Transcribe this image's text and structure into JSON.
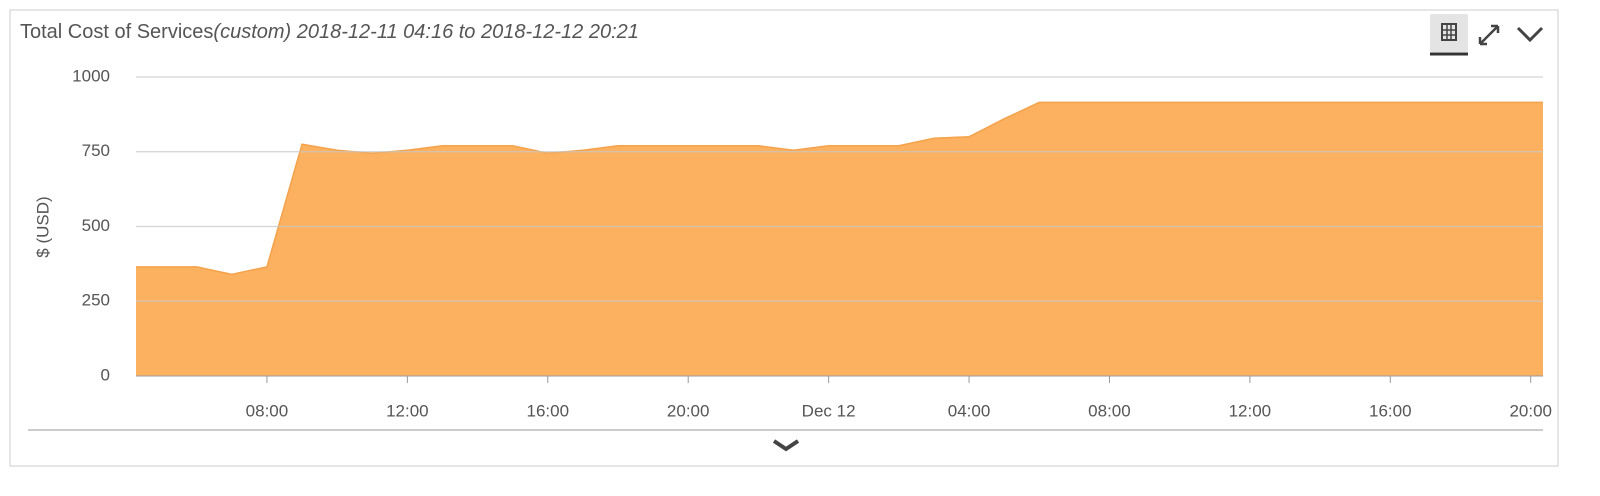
{
  "chart_data": {
    "type": "area",
    "title": "Total Cost of Services",
    "subtitle": "(custom) 2018-12-11 04:16 to 2018-12-12 20:21",
    "y_label": "$ (USD)",
    "color": "#fbb160",
    "x": [
      4.27,
      5,
      6,
      7,
      8,
      9,
      10,
      11,
      12,
      13,
      14,
      15,
      16,
      17,
      18,
      19,
      20,
      21,
      22,
      23,
      24,
      25,
      26,
      27,
      28,
      29,
      30,
      31,
      32,
      33,
      34,
      35,
      36,
      37,
      38,
      39,
      40,
      41,
      42,
      43,
      44,
      44.35
    ],
    "values": [
      365,
      365,
      365,
      340,
      365,
      775,
      755,
      745,
      755,
      770,
      770,
      770,
      745,
      755,
      770,
      770,
      770,
      770,
      770,
      755,
      770,
      770,
      770,
      795,
      800,
      860,
      915,
      915,
      915,
      915,
      915,
      915,
      915,
      915,
      915,
      915,
      915,
      915,
      915,
      915,
      915,
      915
    ],
    "xlim": [
      4.27,
      44.35
    ],
    "xticks": [
      {
        "value": 8,
        "label": "08:00"
      },
      {
        "value": 12,
        "label": "12:00"
      },
      {
        "value": 16,
        "label": "16:00"
      },
      {
        "value": 20,
        "label": "20:00"
      },
      {
        "value": 24,
        "label": "Dec 12"
      },
      {
        "value": 28,
        "label": "04:00"
      },
      {
        "value": 32,
        "label": "08:00"
      },
      {
        "value": 36,
        "label": "12:00"
      },
      {
        "value": 40,
        "label": "16:00"
      },
      {
        "value": 44,
        "label": "20:00"
      }
    ],
    "ylim": [
      0,
      1000
    ],
    "yticks": [
      0,
      250,
      500,
      750,
      1000
    ],
    "grid": true
  }
}
